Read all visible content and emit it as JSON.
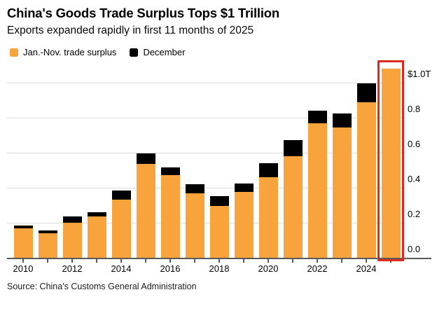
{
  "source": "Source: China's Customs General Administration",
  "chart_data": {
    "type": "bar",
    "stacked": true,
    "title": "China's Goods Trade Surplus Tops $1 Trillion",
    "subtitle": "Exports expanded rapidly in first 11 months of 2025",
    "unit": "USD trillions",
    "categories": [
      "2010",
      "2011",
      "2012",
      "2013",
      "2014",
      "2015",
      "2016",
      "2017",
      "2018",
      "2019",
      "2020",
      "2021",
      "2022",
      "2023",
      "2024",
      "2025"
    ],
    "series": [
      {
        "name": "Jan.-Nov. trade surplus",
        "color": "#F8A33C",
        "values": [
          0.168,
          0.14,
          0.198,
          0.234,
          0.332,
          0.535,
          0.47,
          0.368,
          0.296,
          0.376,
          0.461,
          0.578,
          0.768,
          0.742,
          0.886,
          1.077
        ]
      },
      {
        "name": "December",
        "color": "#000000",
        "values": [
          0.016,
          0.015,
          0.036,
          0.026,
          0.05,
          0.06,
          0.044,
          0.053,
          0.057,
          0.046,
          0.079,
          0.094,
          0.07,
          0.08,
          0.11,
          0
        ]
      }
    ],
    "x_tick_labels": [
      "2010",
      "2012",
      "2014",
      "2016",
      "2018",
      "2020",
      "2022",
      "2024"
    ],
    "y_axis": {
      "side": "right",
      "labels": [
        {
          "value": 1.0,
          "label": "$1.0T"
        },
        {
          "value": 0.8,
          "label": "0.8"
        },
        {
          "value": 0.6,
          "label": "0.6"
        },
        {
          "value": 0.4,
          "label": "0.4"
        },
        {
          "value": 0.2,
          "label": "0.2"
        },
        {
          "value": 0.0,
          "label": "0.0"
        }
      ]
    },
    "ylim": [
      0,
      1.1
    ],
    "grid": "horizontal",
    "legend_position": "top-left",
    "highlight": {
      "category": "2025",
      "color": "#DD2A1E"
    },
    "colors": {
      "grid": "#dcdcdc",
      "axis": "#5a5a5a",
      "text": "#000000"
    }
  }
}
